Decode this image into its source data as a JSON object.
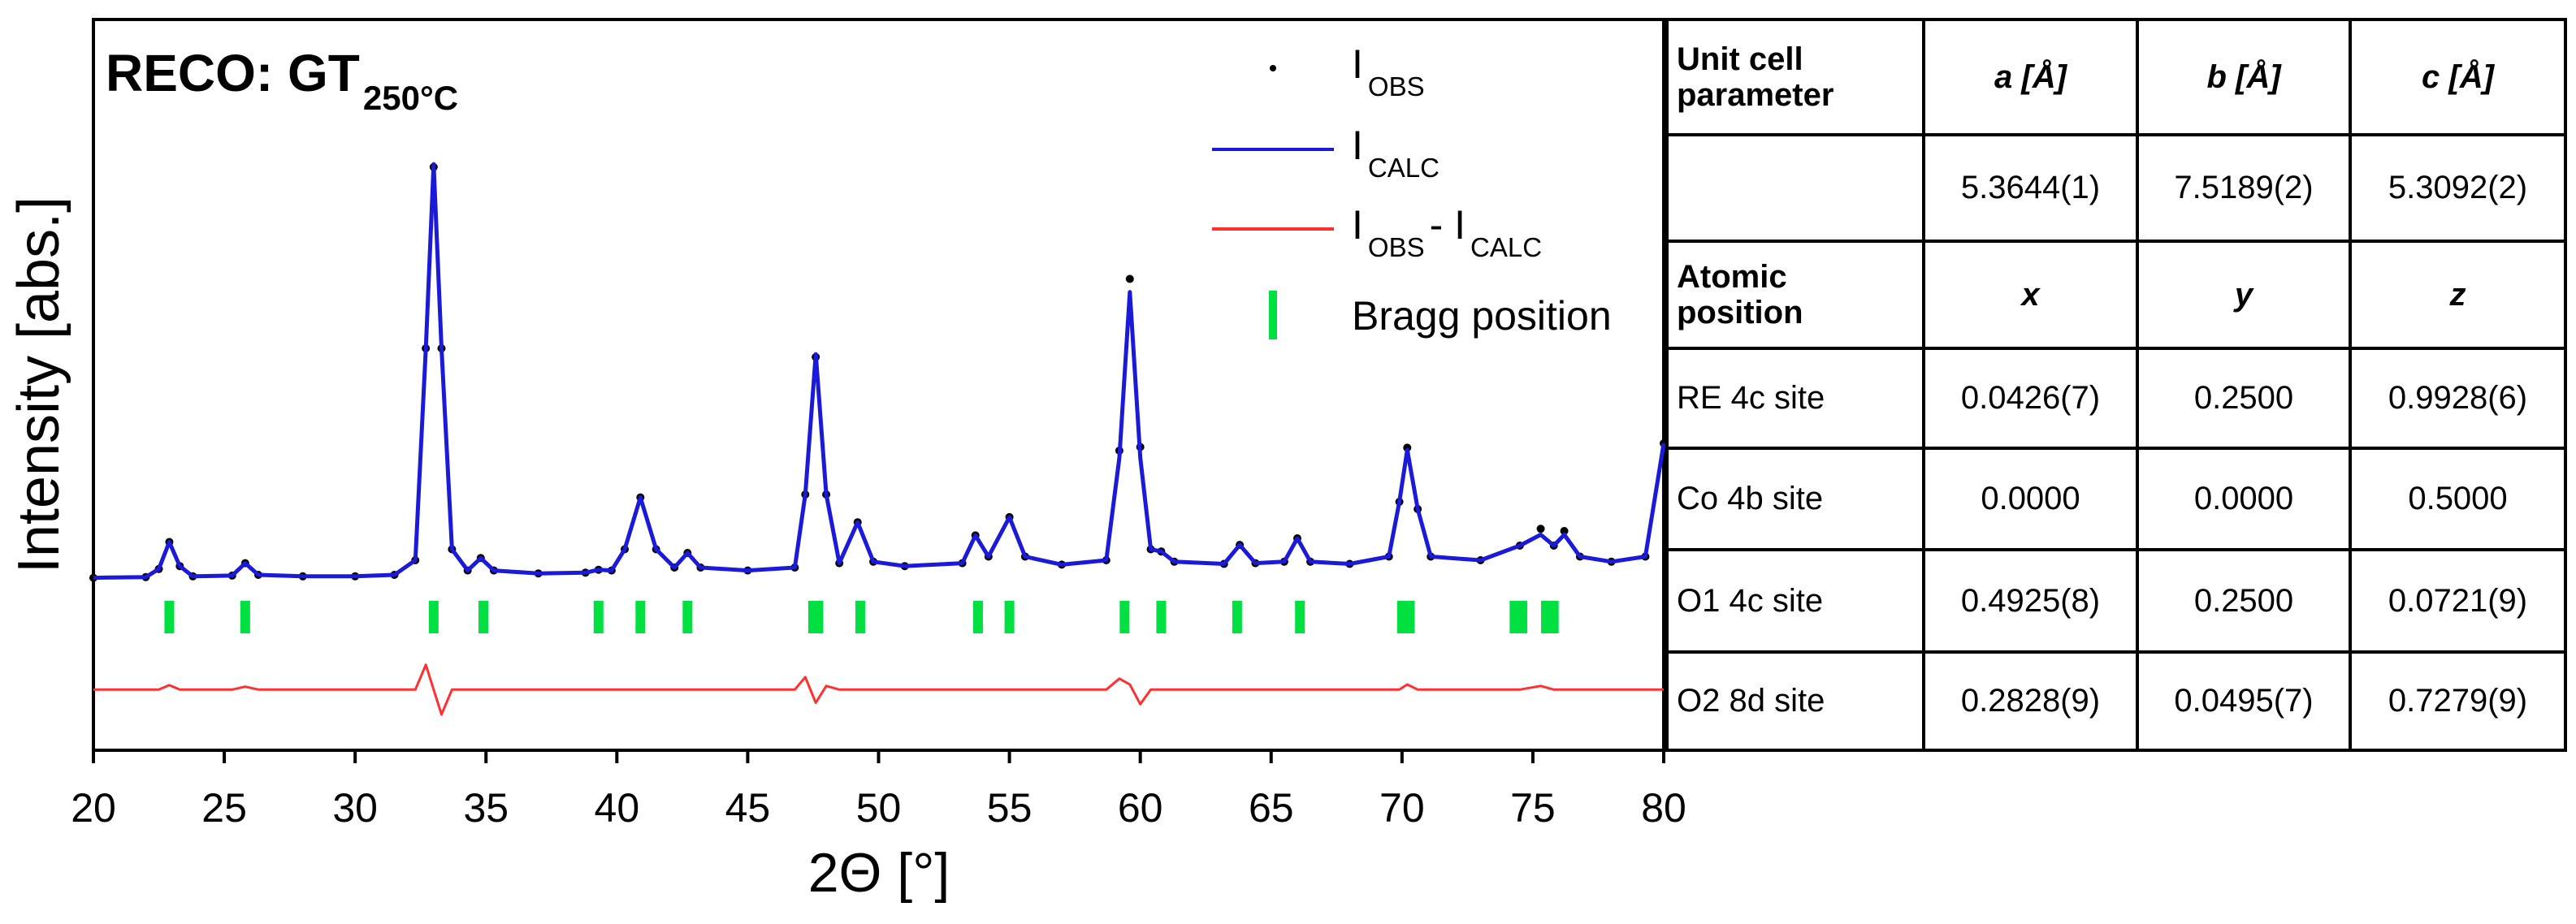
{
  "chart_data": {
    "type": "line",
    "title": "RECO: GT",
    "title_subscript": "250°C",
    "xlabel": "2Θ [°]",
    "ylabel": "Intensity [abs.]",
    "xlim": [
      20,
      80
    ],
    "xticks": [
      20,
      25,
      30,
      35,
      40,
      45,
      50,
      55,
      60,
      65,
      70,
      75,
      80
    ],
    "ylim": [
      0,
      100
    ],
    "x": [
      20,
      22.0,
      22.5,
      22.9,
      23.3,
      23.8,
      25.3,
      25.8,
      26.3,
      28,
      30,
      31.5,
      32.3,
      32.7,
      33.0,
      33.3,
      33.7,
      34.3,
      34.8,
      35.3,
      37,
      38.8,
      39.3,
      39.8,
      40.3,
      40.9,
      41.5,
      42.2,
      42.7,
      43.2,
      45,
      46.8,
      47.2,
      47.6,
      48.0,
      48.5,
      49.2,
      49.8,
      51,
      53.2,
      53.7,
      54.2,
      55.0,
      55.6,
      57,
      58.7,
      59.2,
      59.6,
      60.0,
      60.4,
      60.8,
      61.3,
      63.2,
      63.8,
      64.4,
      65.5,
      66.0,
      66.5,
      68,
      69.5,
      69.9,
      70.2,
      70.6,
      71.1,
      73,
      74.5,
      75.3,
      75.8,
      76.2,
      76.8,
      78,
      79.3,
      80
    ],
    "series": [
      {
        "name": [
          "I",
          "OBS"
        ],
        "color": "#000000",
        "style": "dots",
        "values": [
          23.6,
          23.7,
          24.8,
          28.5,
          25.2,
          23.8,
          23.9,
          25.6,
          24.0,
          23.8,
          23.8,
          24.0,
          26.0,
          55.0,
          79.8,
          55.0,
          27.5,
          24.6,
          26.3,
          24.6,
          24.2,
          24.3,
          24.7,
          24.6,
          27.5,
          34.6,
          27.5,
          25.0,
          27.0,
          25.0,
          24.6,
          25.0,
          35.0,
          53.8,
          35.0,
          25.6,
          31.2,
          25.8,
          25.2,
          25.6,
          29.4,
          26.5,
          31.9,
          26.5,
          25.4,
          26.0,
          41.0,
          64.5,
          41.5,
          27.5,
          27.2,
          25.8,
          25.5,
          28.1,
          25.6,
          25.8,
          29.0,
          25.8,
          25.5,
          26.5,
          34.0,
          41.4,
          33.0,
          26.5,
          26.0,
          28.0,
          30.3,
          28.0,
          30.0,
          26.5,
          25.8,
          26.5,
          42.0
        ]
      },
      {
        "name": [
          "I",
          "CALC"
        ],
        "color": "#1a1ad8",
        "style": "line",
        "values": [
          23.6,
          23.7,
          24.8,
          28.5,
          25.2,
          23.8,
          23.9,
          25.6,
          24.0,
          23.8,
          23.8,
          24.0,
          26.0,
          55.0,
          80.2,
          55.0,
          27.5,
          24.6,
          26.3,
          24.6,
          24.2,
          24.3,
          24.7,
          24.6,
          27.5,
          34.6,
          27.5,
          25.0,
          27.0,
          25.0,
          24.6,
          25.0,
          35.0,
          54.2,
          35.0,
          25.6,
          31.2,
          25.8,
          25.2,
          25.6,
          29.4,
          26.5,
          31.9,
          26.5,
          25.4,
          26.0,
          40.0,
          62.7,
          40.0,
          27.5,
          27.2,
          25.8,
          25.5,
          28.1,
          25.6,
          25.8,
          29.0,
          25.8,
          25.5,
          26.5,
          34.0,
          41.1,
          33.0,
          26.5,
          26.0,
          28.0,
          29.5,
          28.0,
          29.5,
          26.5,
          25.8,
          26.5,
          42.0
        ]
      },
      {
        "name": [
          "I",
          "OBS",
          " - I",
          "CALC"
        ],
        "color": "#ff3030",
        "style": "line",
        "values": [
          8.3,
          8.3,
          8.3,
          8.9,
          8.3,
          8.3,
          8.3,
          8.7,
          8.3,
          8.3,
          8.3,
          8.3,
          8.3,
          11.7,
          8.3,
          4.9,
          8.3,
          8.3,
          8.3,
          8.3,
          8.3,
          8.3,
          8.3,
          8.3,
          8.3,
          8.3,
          8.3,
          8.3,
          8.3,
          8.3,
          8.3,
          8.3,
          10.0,
          6.5,
          8.8,
          8.3,
          8.3,
          8.3,
          8.3,
          8.3,
          8.3,
          8.3,
          8.3,
          8.3,
          8.3,
          8.3,
          9.8,
          9.0,
          6.3,
          8.3,
          8.3,
          8.3,
          8.3,
          8.3,
          8.3,
          8.3,
          8.3,
          8.3,
          8.3,
          8.3,
          8.3,
          9.0,
          8.3,
          8.3,
          8.3,
          8.3,
          8.8,
          8.3,
          8.3,
          8.3,
          8.3,
          8.3,
          8.3
        ]
      }
    ],
    "bragg": {
      "name": [
        "Bragg position"
      ],
      "color": "#00e040",
      "x": [
        22.9,
        25.8,
        33.0,
        34.9,
        39.3,
        40.9,
        42.7,
        47.5,
        47.7,
        49.3,
        53.8,
        55.0,
        59.4,
        60.8,
        63.7,
        66.1,
        70.0,
        70.3,
        74.3,
        74.6,
        75.5,
        75.8
      ]
    }
  },
  "table": {
    "unit_cell": {
      "header": "Unit cell parameter",
      "columns": [
        "a [Å]",
        "b [Å]",
        "c [Å]"
      ],
      "values": [
        "5.3644(1)",
        "7.5189(2)",
        "5.3092(2)"
      ]
    },
    "atomic": {
      "header": "Atomic position",
      "columns": [
        "x",
        "y",
        "z"
      ],
      "rows": [
        {
          "site": "RE 4c site",
          "values": [
            "0.0426(7)",
            "0.2500",
            "0.9928(6)"
          ]
        },
        {
          "site": "Co 4b site",
          "values": [
            "0.0000",
            "0.0000",
            "0.5000"
          ]
        },
        {
          "site": "O1 4c site",
          "values": [
            "0.4925(8)",
            "0.2500",
            "0.0721(9)"
          ]
        },
        {
          "site": "O2 8d site",
          "values": [
            "0.2828(9)",
            "0.0495(7)",
            "0.7279(9)"
          ]
        }
      ]
    }
  }
}
